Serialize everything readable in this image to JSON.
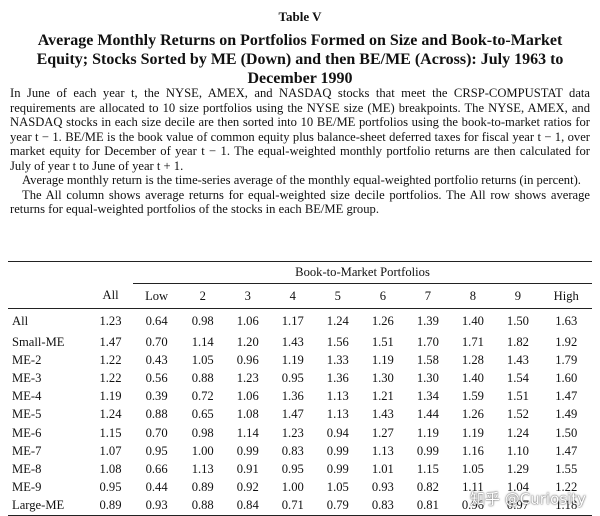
{
  "header": {
    "label": "Table V",
    "title": "Average Monthly Returns on Portfolios Formed on Size and Book-to-Market Equity; Stocks Sorted by ME (Down) and then BE/ME (Across): July 1963 to December 1990"
  },
  "description": [
    "In June of each year t, the NYSE, AMEX, and NASDAQ stocks that meet the CRSP-COMPUSTAT data requirements are allocated to 10 size portfolios using the NYSE size (ME) breakpoints. The NYSE, AMEX, and NASDAQ stocks in each size decile are then sorted into 10 BE/ME portfolios using the book-to-market ratios for year t − 1. BE/ME is the book value of common equity plus balance-sheet deferred taxes for fiscal year t − 1, over market equity for December of year t − 1. The equal-weighted monthly portfolio returns are then calculated for July of year t to June of year t + 1.",
    "Average monthly return is the time-series average of the monthly equal-weighted portfolio returns (in percent).",
    "The All column shows average returns for equal-weighted size decile portfolios. The All row shows average returns for equal-weighted portfolios of the stocks in each BE/ME group."
  ],
  "table": {
    "group_header": "Book-to-Market Portfolios",
    "columns": [
      "All",
      "Low",
      "2",
      "3",
      "4",
      "5",
      "6",
      "7",
      "8",
      "9",
      "High"
    ],
    "rows": [
      [
        "All",
        "1.23",
        "0.64",
        "0.98",
        "1.06",
        "1.17",
        "1.24",
        "1.26",
        "1.39",
        "1.40",
        "1.50",
        "1.63"
      ],
      [
        "Small-ME",
        "1.47",
        "0.70",
        "1.14",
        "1.20",
        "1.43",
        "1.56",
        "1.51",
        "1.70",
        "1.71",
        "1.82",
        "1.92"
      ],
      [
        "ME-2",
        "1.22",
        "0.43",
        "1.05",
        "0.96",
        "1.19",
        "1.33",
        "1.19",
        "1.58",
        "1.28",
        "1.43",
        "1.79"
      ],
      [
        "ME-3",
        "1.22",
        "0.56",
        "0.88",
        "1.23",
        "0.95",
        "1.36",
        "1.30",
        "1.30",
        "1.40",
        "1.54",
        "1.60"
      ],
      [
        "ME-4",
        "1.19",
        "0.39",
        "0.72",
        "1.06",
        "1.36",
        "1.13",
        "1.21",
        "1.34",
        "1.59",
        "1.51",
        "1.47"
      ],
      [
        "ME-5",
        "1.24",
        "0.88",
        "0.65",
        "1.08",
        "1.47",
        "1.13",
        "1.43",
        "1.44",
        "1.26",
        "1.52",
        "1.49"
      ],
      [
        "ME-6",
        "1.15",
        "0.70",
        "0.98",
        "1.14",
        "1.23",
        "0.94",
        "1.27",
        "1.19",
        "1.19",
        "1.24",
        "1.50"
      ],
      [
        "ME-7",
        "1.07",
        "0.95",
        "1.00",
        "0.99",
        "0.83",
        "0.99",
        "1.13",
        "0.99",
        "1.16",
        "1.10",
        "1.47"
      ],
      [
        "ME-8",
        "1.08",
        "0.66",
        "1.13",
        "0.91",
        "0.95",
        "0.99",
        "1.01",
        "1.15",
        "1.05",
        "1.29",
        "1.55"
      ],
      [
        "ME-9",
        "0.95",
        "0.44",
        "0.89",
        "0.92",
        "1.00",
        "1.05",
        "0.93",
        "0.82",
        "1.11",
        "1.04",
        "1.22"
      ],
      [
        "Large-ME",
        "0.89",
        "0.93",
        "0.88",
        "0.84",
        "0.71",
        "0.79",
        "0.83",
        "0.81",
        "0.96",
        "0.97",
        "1.18"
      ]
    ]
  },
  "watermark": "知乎 @Curiosity"
}
